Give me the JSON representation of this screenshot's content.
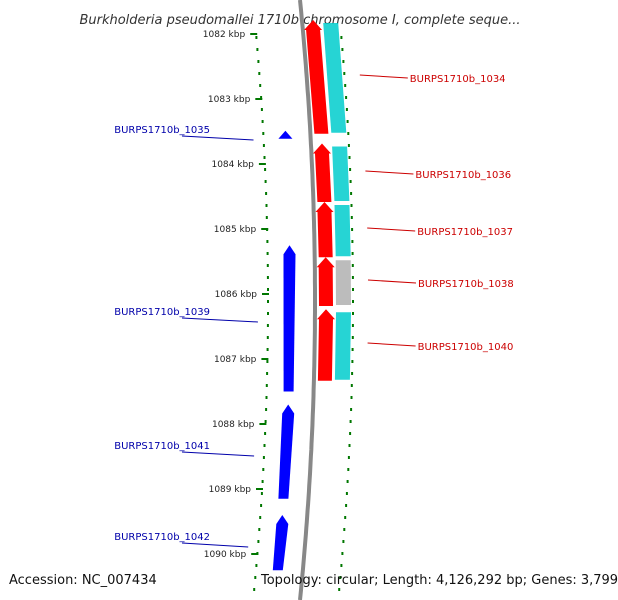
{
  "title": "Burkholderia pseudomallei 1710b chromosome I, complete seque...",
  "accession_label": "Accession: NC_007434",
  "topology_label": "Topology: circular; Length: 4,126,292 bp; Genes: 3,799",
  "colors": {
    "forward_gene": "#ff0000",
    "reverse_gene": "#0000ff",
    "cds_track": "#00cccc",
    "cds_track_unknown": "#b0b0b0",
    "backbone": "#888888",
    "tick": "#007700",
    "left_label": "#0000aa",
    "right_label": "#cc0000"
  },
  "ticks": [
    "1082 kbp",
    "1083 kbp",
    "1084 kbp",
    "1085 kbp",
    "1086 kbp",
    "1087 kbp",
    "1088 kbp",
    "1089 kbp",
    "1090 kbp"
  ],
  "genes_left": [
    {
      "label": "BURPS1710b_1035",
      "start_kbp": 1083.55,
      "end_kbp": 1083.6
    },
    {
      "label": "BURPS1710b_1039",
      "start_kbp": 1085.25,
      "end_kbp": 1087.5
    },
    {
      "label": "BURPS1710b_1041",
      "start_kbp": 1087.7,
      "end_kbp": 1089.15
    },
    {
      "label": "BURPS1710b_1042",
      "start_kbp": 1089.4,
      "end_kbp": 1090.25
    }
  ],
  "genes_right": [
    {
      "label": "BURPS1710b_1034",
      "start_kbp": 1081.8,
      "end_kbp": 1083.55
    },
    {
      "label": "BURPS1710b_1036",
      "start_kbp": 1083.7,
      "end_kbp": 1084.6
    },
    {
      "label": "BURPS1710b_1037",
      "start_kbp": 1084.6,
      "end_kbp": 1085.45
    },
    {
      "label": "BURPS1710b_1038",
      "start_kbp": 1085.45,
      "end_kbp": 1086.2
    },
    {
      "label": "BURPS1710b_1040",
      "start_kbp": 1086.25,
      "end_kbp": 1087.35
    }
  ]
}
